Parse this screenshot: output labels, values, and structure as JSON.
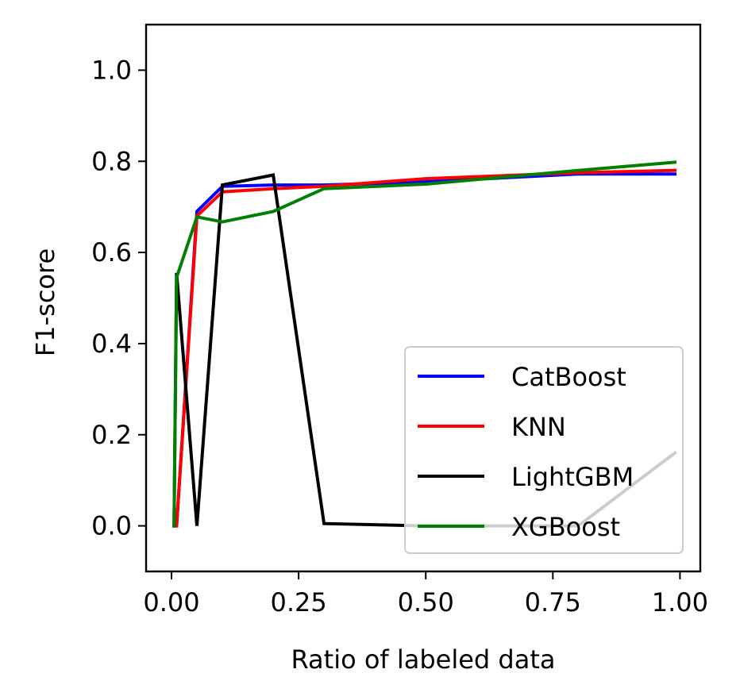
{
  "chart_data": {
    "type": "line",
    "title": "",
    "xlabel": "Ratio of labeled data",
    "ylabel": "F1-score",
    "xlim": [
      -0.05,
      1.04
    ],
    "ylim": [
      -0.1,
      1.1
    ],
    "xticks": [
      0.0,
      0.25,
      0.5,
      0.75,
      1.0
    ],
    "xtick_labels": [
      "0.00",
      "0.25",
      "0.50",
      "0.75",
      "1.00"
    ],
    "yticks": [
      0.0,
      0.2,
      0.4,
      0.6,
      0.8,
      1.0
    ],
    "ytick_labels": [
      "0.0",
      "0.2",
      "0.4",
      "0.6",
      "0.8",
      "1.0"
    ],
    "grid": false,
    "legend_position": "lower-right",
    "series": [
      {
        "name": "CatBoost",
        "color": "#0000ff",
        "x": [
          0.005,
          0.01,
          0.05,
          0.1,
          0.2,
          0.3,
          0.5,
          0.8,
          0.99
        ],
        "y": [
          0.0,
          0.0,
          0.69,
          0.745,
          0.748,
          0.748,
          0.755,
          0.772,
          0.772
        ]
      },
      {
        "name": "KNN",
        "color": "#ff0000",
        "x": [
          0.005,
          0.01,
          0.05,
          0.1,
          0.2,
          0.3,
          0.5,
          0.8,
          0.99
        ],
        "y": [
          0.0,
          0.0,
          0.68,
          0.733,
          0.74,
          0.745,
          0.762,
          0.775,
          0.78
        ]
      },
      {
        "name": "LightGBM",
        "color": "#000000",
        "x": [
          0.005,
          0.01,
          0.05,
          0.1,
          0.2,
          0.3,
          0.5,
          0.8,
          0.99
        ],
        "y": [
          0.0,
          0.555,
          0.0,
          0.748,
          0.77,
          0.005,
          0.0,
          0.0,
          0.16
        ]
      },
      {
        "name": "XGBoost",
        "color": "#008000",
        "x": [
          0.005,
          0.01,
          0.05,
          0.1,
          0.2,
          0.3,
          0.5,
          0.8,
          0.99
        ],
        "y": [
          0.0,
          0.545,
          0.678,
          0.667,
          0.69,
          0.74,
          0.75,
          0.78,
          0.798
        ]
      }
    ]
  }
}
